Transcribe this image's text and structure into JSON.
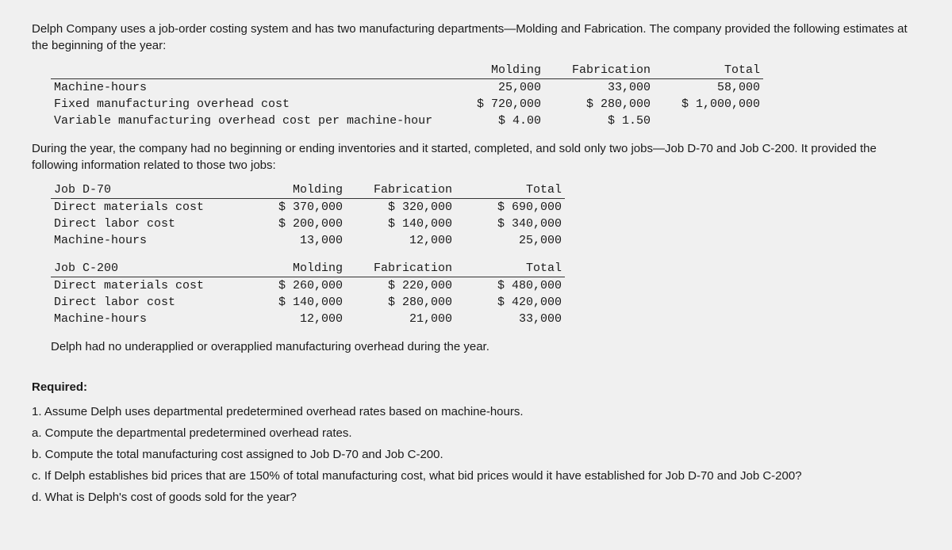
{
  "intro1": "Delph Company uses a job-order costing system and has two manufacturing departments—Molding and Fabrication. The company provided the following estimates at the beginning of the year:",
  "estTable": {
    "headers": {
      "c1": "Molding",
      "c2": "Fabrication",
      "c3": "Total"
    },
    "rows": [
      {
        "label": "Machine-hours",
        "c1": "25,000",
        "c2": "33,000",
        "c3": "58,000"
      },
      {
        "label": "Fixed manufacturing overhead cost",
        "c1": "$ 720,000",
        "c2": "$ 280,000",
        "c3": "$ 1,000,000"
      },
      {
        "label": "Variable manufacturing overhead cost per machine-hour",
        "c1": "$ 4.00",
        "c2": "$ 1.50",
        "c3": ""
      }
    ]
  },
  "intro2": "During the year, the company had no beginning or ending inventories and it started, completed, and sold only two jobs—Job D-70 and Job C-200. It provided the following information related to those two jobs:",
  "jobD": {
    "title": "Job D-70",
    "headers": {
      "c1": "Molding",
      "c2": "Fabrication",
      "c3": "Total"
    },
    "rows": [
      {
        "label": "Direct materials cost",
        "c1": "$ 370,000",
        "c2": "$ 320,000",
        "c3": "$ 690,000"
      },
      {
        "label": "Direct labor cost",
        "c1": "$ 200,000",
        "c2": "$ 140,000",
        "c3": "$ 340,000"
      },
      {
        "label": "Machine-hours",
        "c1": "13,000",
        "c2": "12,000",
        "c3": "25,000"
      }
    ]
  },
  "jobC": {
    "title": "Job C-200",
    "headers": {
      "c1": "Molding",
      "c2": "Fabrication",
      "c3": "Total"
    },
    "rows": [
      {
        "label": "Direct materials cost",
        "c1": "$ 260,000",
        "c2": "$ 220,000",
        "c3": "$ 480,000"
      },
      {
        "label": "Direct labor cost",
        "c1": "$ 140,000",
        "c2": "$ 280,000",
        "c3": "$ 420,000"
      },
      {
        "label": "Machine-hours",
        "c1": "12,000",
        "c2": "21,000",
        "c3": "33,000"
      }
    ]
  },
  "noUnderOver": "Delph had no underapplied or overapplied manufacturing overhead during the year.",
  "requiredHead": "Required:",
  "req1": "1. Assume Delph uses departmental predetermined overhead rates based on machine-hours.",
  "req1a": "a. Compute the departmental predetermined overhead rates.",
  "req1b": "b. Compute the total manufacturing cost assigned to Job D-70 and Job C-200.",
  "req1c": "c. If Delph establishes bid prices that are 150% of total manufacturing cost, what bid prices would it have established for Job D-70 and Job C-200?",
  "req1d": "d. What is Delph's cost of goods sold for the year?"
}
